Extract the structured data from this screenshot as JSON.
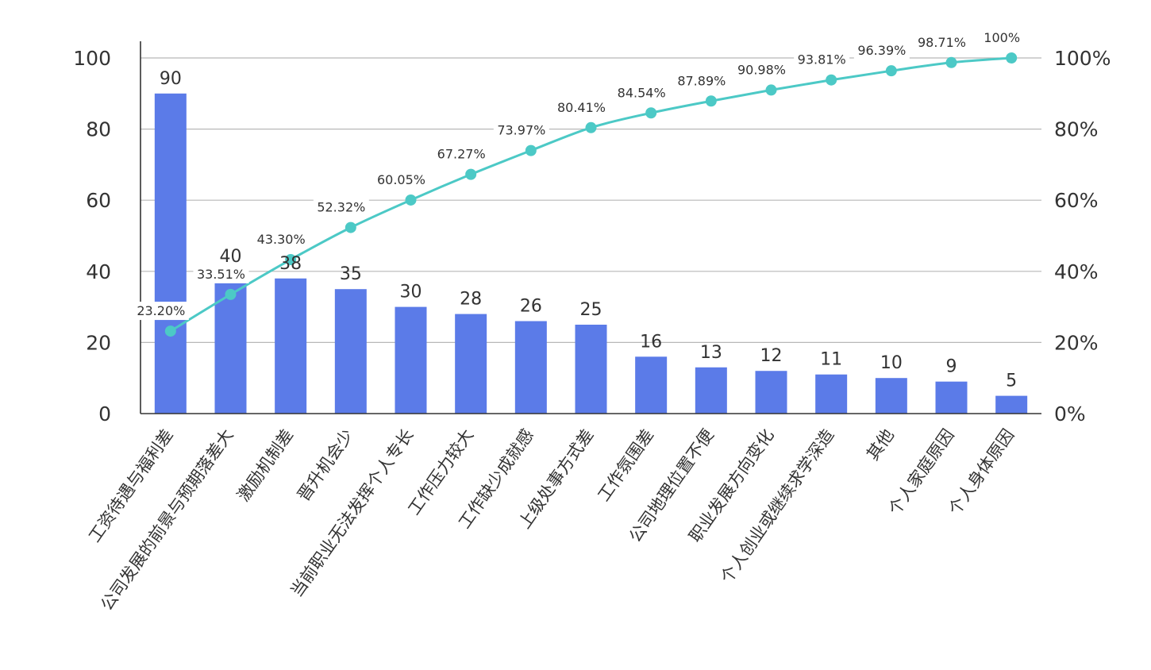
{
  "chart_data": {
    "type": "bar",
    "title": "",
    "xlabel": "",
    "ylabel": "",
    "categories": [
      "工资待遇与福利差",
      "公司发展的前景与预期落差大",
      "激励机制差",
      "晋升机会少",
      "当前职业无法发挥个人专长",
      "工作压力较大",
      "工作缺少成就感",
      "上级处事方式差",
      "工作氛围差",
      "公司地理位置不便",
      "职业发展方向变化",
      "个人创业或继续求学深造",
      "其他",
      "个人家庭原因",
      "个人身体原因"
    ],
    "values": [
      90,
      40,
      38,
      35,
      30,
      28,
      26,
      25,
      16,
      13,
      12,
      11,
      10,
      9,
      5
    ],
    "cumulative_percent": [
      23.2,
      33.51,
      43.3,
      52.32,
      60.05,
      67.27,
      73.97,
      80.41,
      84.54,
      87.89,
      90.98,
      93.81,
      96.39,
      98.71,
      100
    ],
    "cumulative_labels": [
      "23.20%",
      "33.51%",
      "43.30%",
      "52.32%",
      "60.05%",
      "67.27%",
      "73.97%",
      "80.41%",
      "84.54%",
      "87.89%",
      "90.98%",
      "93.81%",
      "96.39%",
      "98.71%",
      "100%"
    ],
    "ylim": [
      0,
      100
    ],
    "y2lim": [
      0,
      100
    ],
    "yticks": [
      "0",
      "20",
      "40",
      "60",
      "80",
      "100"
    ],
    "y2ticks": [
      "0%",
      "20%",
      "40%",
      "60%",
      "80%",
      "100%"
    ],
    "grid": true,
    "legend": "none",
    "colors": {
      "bar": "#5b7be8",
      "line": "#4cc9c6",
      "point": "#4cc9c6"
    }
  }
}
